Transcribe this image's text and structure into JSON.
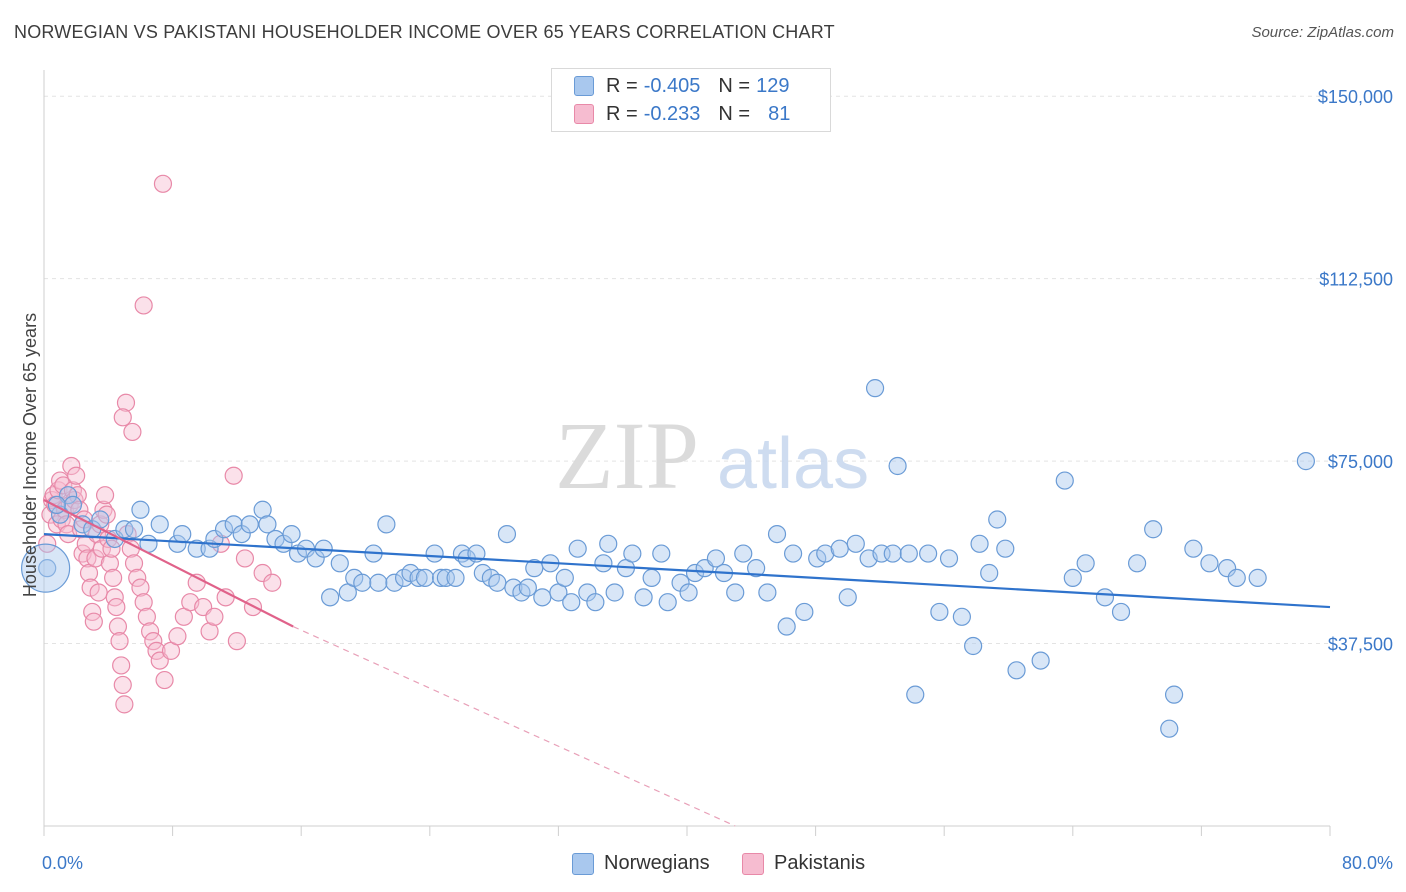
{
  "title": "NORWEGIAN VS PAKISTANI HOUSEHOLDER INCOME OVER 65 YEARS CORRELATION CHART",
  "source": "Source: ZipAtlas.com",
  "watermark": {
    "zip": "ZIP",
    "atlas": "atlas"
  },
  "legend": {
    "rows": [
      {
        "r_label": "R = ",
        "r_value": "-0.405",
        "n_label": "N = ",
        "n_value": "129",
        "color": "#a9c8ee",
        "border": "#6a9bd6"
      },
      {
        "r_label": "R = ",
        "r_value": "-0.233",
        "n_label": "N = ",
        "n_value": "81",
        "color": "#f6bcd0",
        "border": "#e889a8"
      }
    ]
  },
  "bottom_legend": [
    {
      "label": "Norwegians",
      "color": "#a9c8ee",
      "border": "#6a9bd6"
    },
    {
      "label": "Pakistanis",
      "color": "#f6bcd0",
      "border": "#e889a8"
    }
  ],
  "chart_data": {
    "type": "scatter",
    "title": "NORWEGIAN VS PAKISTANI HOUSEHOLDER INCOME OVER 65 YEARS CORRELATION CHART",
    "xlabel": "",
    "ylabel": "Householder Income Over 65 years",
    "xlim": [
      0,
      80
    ],
    "ylim": [
      0,
      153750
    ],
    "x_tick_labels": [
      {
        "x": 0,
        "label": "0.0%"
      },
      {
        "x": 80,
        "label": "80.0%"
      }
    ],
    "y_ticks": [
      {
        "y": 37500,
        "label": "$37,500"
      },
      {
        "y": 75000,
        "label": "$75,000"
      },
      {
        "y": 112500,
        "label": "$112,500"
      },
      {
        "y": 150000,
        "label": "$150,000"
      }
    ],
    "grid": true,
    "series": [
      {
        "name": "Norwegians",
        "color": "#6a9bd6",
        "fill": "#a9c8ee",
        "trend": {
          "x": [
            0,
            80
          ],
          "y": [
            60000,
            45000
          ],
          "style": "solid"
        },
        "points": [
          [
            0.2,
            53000
          ],
          [
            1.0,
            64000
          ],
          [
            1.5,
            68000
          ],
          [
            1.8,
            66000
          ],
          [
            2.4,
            62000
          ],
          [
            3.0,
            61000
          ],
          [
            3.5,
            63000
          ],
          [
            4.4,
            59000
          ],
          [
            5.0,
            61000
          ],
          [
            5.6,
            61000
          ],
          [
            6.0,
            65000
          ],
          [
            6.5,
            58000
          ],
          [
            7.2,
            62000
          ],
          [
            8.3,
            58000
          ],
          [
            8.6,
            60000
          ],
          [
            9.5,
            57000
          ],
          [
            10.3,
            57000
          ],
          [
            10.6,
            59000
          ],
          [
            11.2,
            61000
          ],
          [
            11.8,
            62000
          ],
          [
            12.3,
            60000
          ],
          [
            12.8,
            62000
          ],
          [
            13.6,
            65000
          ],
          [
            13.9,
            62000
          ],
          [
            14.4,
            59000
          ],
          [
            14.9,
            58000
          ],
          [
            15.4,
            60000
          ],
          [
            15.8,
            56000
          ],
          [
            16.3,
            57000
          ],
          [
            16.9,
            55000
          ],
          [
            17.4,
            57000
          ],
          [
            17.8,
            47000
          ],
          [
            18.4,
            54000
          ],
          [
            18.9,
            48000
          ],
          [
            19.3,
            51000
          ],
          [
            19.8,
            50000
          ],
          [
            20.5,
            56000
          ],
          [
            20.8,
            50000
          ],
          [
            21.3,
            62000
          ],
          [
            21.8,
            50000
          ],
          [
            22.4,
            51000
          ],
          [
            22.8,
            52000
          ],
          [
            23.3,
            51000
          ],
          [
            23.7,
            51000
          ],
          [
            24.3,
            56000
          ],
          [
            24.7,
            51000
          ],
          [
            25.0,
            51000
          ],
          [
            25.6,
            51000
          ],
          [
            26.0,
            56000
          ],
          [
            26.3,
            55000
          ],
          [
            26.9,
            56000
          ],
          [
            27.3,
            52000
          ],
          [
            27.8,
            51000
          ],
          [
            28.2,
            50000
          ],
          [
            28.8,
            60000
          ],
          [
            29.2,
            49000
          ],
          [
            29.7,
            48000
          ],
          [
            30.1,
            49000
          ],
          [
            30.5,
            53000
          ],
          [
            31.0,
            47000
          ],
          [
            31.5,
            54000
          ],
          [
            32.0,
            48000
          ],
          [
            32.4,
            51000
          ],
          [
            32.8,
            46000
          ],
          [
            33.2,
            57000
          ],
          [
            33.8,
            48000
          ],
          [
            34.3,
            46000
          ],
          [
            34.8,
            54000
          ],
          [
            35.1,
            58000
          ],
          [
            35.5,
            48000
          ],
          [
            36.2,
            53000
          ],
          [
            36.6,
            56000
          ],
          [
            37.3,
            47000
          ],
          [
            37.8,
            51000
          ],
          [
            38.4,
            56000
          ],
          [
            38.8,
            46000
          ],
          [
            39.6,
            50000
          ],
          [
            40.1,
            48000
          ],
          [
            40.5,
            52000
          ],
          [
            41.1,
            53000
          ],
          [
            41.8,
            55000
          ],
          [
            42.3,
            52000
          ],
          [
            43.0,
            48000
          ],
          [
            43.5,
            56000
          ],
          [
            44.3,
            53000
          ],
          [
            45.0,
            48000
          ],
          [
            45.6,
            60000
          ],
          [
            46.2,
            41000
          ],
          [
            46.6,
            56000
          ],
          [
            47.3,
            44000
          ],
          [
            48.1,
            55000
          ],
          [
            48.6,
            56000
          ],
          [
            49.5,
            57000
          ],
          [
            50.0,
            47000
          ],
          [
            50.5,
            58000
          ],
          [
            51.3,
            55000
          ],
          [
            51.7,
            90000
          ],
          [
            52.1,
            56000
          ],
          [
            52.8,
            56000
          ],
          [
            53.1,
            74000
          ],
          [
            53.8,
            56000
          ],
          [
            54.2,
            27000
          ],
          [
            55.0,
            56000
          ],
          [
            55.7,
            44000
          ],
          [
            56.3,
            55000
          ],
          [
            57.1,
            43000
          ],
          [
            57.8,
            37000
          ],
          [
            58.2,
            58000
          ],
          [
            58.8,
            52000
          ],
          [
            59.3,
            63000
          ],
          [
            59.8,
            57000
          ],
          [
            60.5,
            32000
          ],
          [
            62.0,
            34000
          ],
          [
            63.5,
            71000
          ],
          [
            64.0,
            51000
          ],
          [
            64.8,
            54000
          ],
          [
            66.0,
            47000
          ],
          [
            67.0,
            44000
          ],
          [
            68.0,
            54000
          ],
          [
            69.0,
            61000
          ],
          [
            70.0,
            20000
          ],
          [
            70.3,
            27000
          ],
          [
            71.5,
            57000
          ],
          [
            72.5,
            54000
          ],
          [
            73.6,
            53000
          ],
          [
            74.2,
            51000
          ],
          [
            75.5,
            51000
          ],
          [
            78.5,
            75000
          ],
          [
            0.8,
            66000
          ]
        ]
      },
      {
        "name": "Pakistanis",
        "color": "#e889a8",
        "fill": "#f6bcd0",
        "trend": {
          "x": [
            0,
            15.5
          ],
          "y": [
            67000,
            41000
          ],
          "style": "solid"
        },
        "trend_extension": {
          "x": [
            15.5,
            43
          ],
          "y": [
            41000,
            0
          ],
          "style": "dashed"
        },
        "points": [
          [
            0.2,
            58000
          ],
          [
            0.4,
            64000
          ],
          [
            0.5,
            67000
          ],
          [
            0.6,
            68000
          ],
          [
            0.7,
            66000
          ],
          [
            0.8,
            62000
          ],
          [
            0.9,
            69000
          ],
          [
            1.0,
            71000
          ],
          [
            1.1,
            63000
          ],
          [
            1.2,
            70000
          ],
          [
            1.3,
            65000
          ],
          [
            1.4,
            62000
          ],
          [
            1.5,
            60000
          ],
          [
            1.6,
            66000
          ],
          [
            1.7,
            74000
          ],
          [
            1.8,
            69000
          ],
          [
            1.9,
            67000
          ],
          [
            2.0,
            72000
          ],
          [
            2.1,
            68000
          ],
          [
            2.2,
            65000
          ],
          [
            2.3,
            61000
          ],
          [
            2.4,
            56000
          ],
          [
            2.5,
            63000
          ],
          [
            2.6,
            58000
          ],
          [
            2.7,
            55000
          ],
          [
            2.8,
            52000
          ],
          [
            2.9,
            49000
          ],
          [
            3.0,
            44000
          ],
          [
            3.1,
            42000
          ],
          [
            3.2,
            55000
          ],
          [
            3.3,
            60000
          ],
          [
            3.4,
            48000
          ],
          [
            3.5,
            62000
          ],
          [
            3.6,
            57000
          ],
          [
            3.7,
            65000
          ],
          [
            3.8,
            68000
          ],
          [
            3.9,
            64000
          ],
          [
            4.0,
            59000
          ],
          [
            4.1,
            54000
          ],
          [
            4.2,
            57000
          ],
          [
            4.3,
            51000
          ],
          [
            4.4,
            47000
          ],
          [
            4.5,
            45000
          ],
          [
            4.6,
            41000
          ],
          [
            4.7,
            38000
          ],
          [
            4.8,
            33000
          ],
          [
            4.9,
            29000
          ],
          [
            5.0,
            25000
          ],
          [
            5.2,
            60000
          ],
          [
            5.4,
            57000
          ],
          [
            5.6,
            54000
          ],
          [
            5.8,
            51000
          ],
          [
            6.0,
            49000
          ],
          [
            6.2,
            46000
          ],
          [
            6.4,
            43000
          ],
          [
            6.6,
            40000
          ],
          [
            6.8,
            38000
          ],
          [
            7.0,
            36000
          ],
          [
            7.2,
            34000
          ],
          [
            7.5,
            30000
          ],
          [
            7.9,
            36000
          ],
          [
            8.3,
            39000
          ],
          [
            8.7,
            43000
          ],
          [
            9.1,
            46000
          ],
          [
            9.5,
            50000
          ],
          [
            9.9,
            45000
          ],
          [
            10.3,
            40000
          ],
          [
            10.6,
            43000
          ],
          [
            11.0,
            58000
          ],
          [
            11.3,
            47000
          ],
          [
            11.8,
            72000
          ],
          [
            12.5,
            55000
          ],
          [
            13.0,
            45000
          ],
          [
            13.6,
            52000
          ],
          [
            14.2,
            50000
          ],
          [
            5.1,
            87000
          ],
          [
            4.9,
            84000
          ],
          [
            5.5,
            81000
          ],
          [
            6.2,
            107000
          ],
          [
            7.4,
            132000
          ],
          [
            12.0,
            38000
          ]
        ]
      }
    ]
  }
}
